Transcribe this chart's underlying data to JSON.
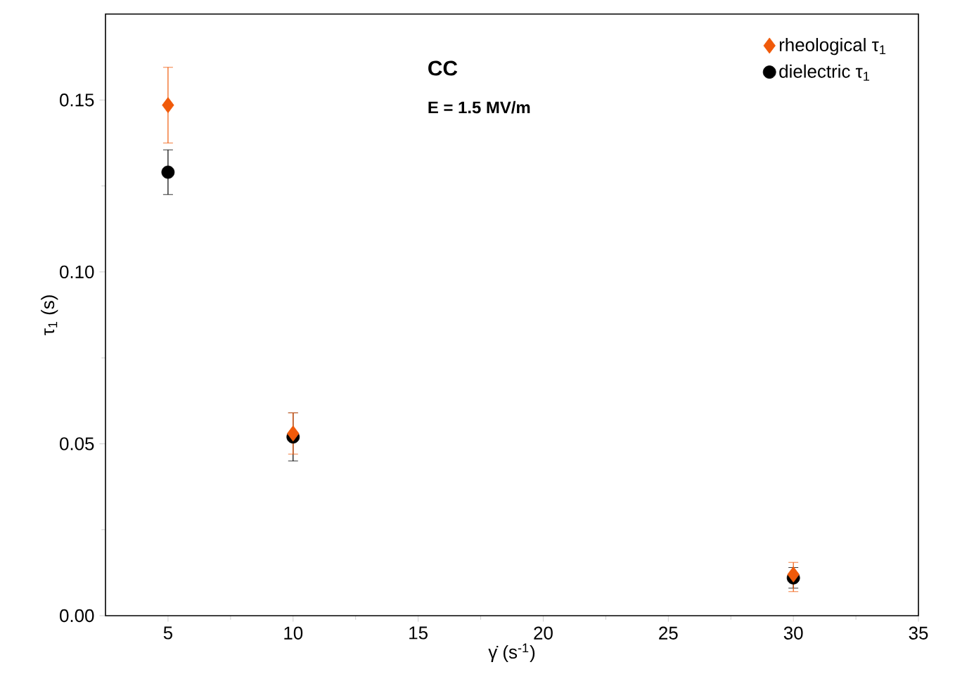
{
  "chart_data": {
    "type": "scatter",
    "title": "**CC**",
    "subtitle": "**E = 1.5 MV/m**",
    "xlabel": "γ̇ (s$^{-1}$)",
    "ylabel": "τ$_{1}$ (s)",
    "x": [
      5,
      10,
      30
    ],
    "series": [
      {
        "name": "rheological τ$_{1}$",
        "color": "#f05a0a",
        "marker": "diamond",
        "values": [
          0.1485,
          0.053,
          0.012
        ],
        "errors": [
          0.011,
          0.006,
          [
            0.007,
            0.0155
          ]
        ]
      },
      {
        "name": "dielectric τ$_{1}$",
        "color": "#000000",
        "marker": "circle",
        "values": [
          0.129,
          0.052,
          0.011
        ],
        "errors": [
          0.0065,
          0.007,
          0.003
        ]
      }
    ],
    "xlim": [
      2.5,
      35
    ],
    "ylim": [
      0,
      0.175
    ],
    "xticks": [
      5,
      10,
      15,
      20,
      25,
      30,
      35
    ],
    "yticks": [
      {
        "value": 0,
        "label": "0.00"
      },
      {
        "value": 0.05,
        "label": "0.05"
      },
      {
        "value": 0.1,
        "label": "0.10"
      },
      {
        "value": 0.15,
        "label": "0.15"
      }
    ],
    "grid": false,
    "legend": "top right"
  }
}
